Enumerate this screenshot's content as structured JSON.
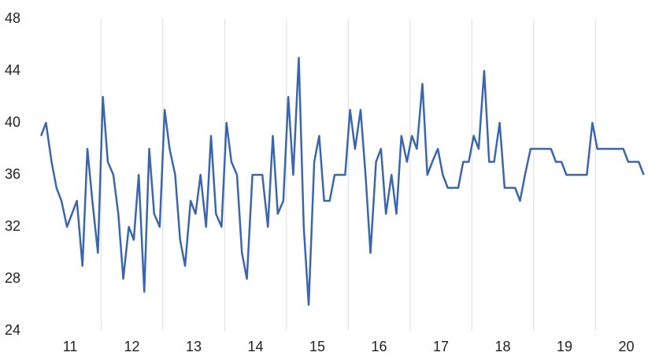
{
  "chart_data": {
    "type": "line",
    "x": [
      10.53,
      10.61,
      10.7,
      10.78,
      10.86,
      10.95,
      11.03,
      11.11,
      11.2,
      11.28,
      11.36,
      11.45,
      11.53,
      11.61,
      11.7,
      11.78,
      11.86,
      11.95,
      12.03,
      12.11,
      12.2,
      12.28,
      12.36,
      12.45,
      12.53,
      12.61,
      12.7,
      12.78,
      12.86,
      12.95,
      13.03,
      13.11,
      13.2,
      13.28,
      13.36,
      13.45,
      13.53,
      13.61,
      13.7,
      13.78,
      13.86,
      13.95,
      14.03,
      14.11,
      14.2,
      14.28,
      14.36,
      14.45,
      14.53,
      14.61,
      14.7,
      14.78,
      14.86,
      14.95,
      15.03,
      15.11,
      15.2,
      15.28,
      15.36,
      15.45,
      15.53,
      15.61,
      15.7,
      15.78,
      15.86,
      15.95,
      16.03,
      16.11,
      16.2,
      16.28,
      16.36,
      16.45,
      16.53,
      16.61,
      16.7,
      16.78,
      16.86,
      16.95,
      17.03,
      17.11,
      17.2,
      17.28,
      17.36,
      17.45,
      17.53,
      17.61,
      17.7,
      17.78,
      17.86,
      17.95,
      18.03,
      18.11,
      18.2,
      18.28,
      18.36,
      18.45,
      18.53,
      18.61,
      18.7,
      18.78,
      18.86,
      18.95,
      19.03,
      19.11,
      19.2,
      19.28,
      19.36,
      19.45,
      19.53,
      19.61,
      19.7,
      19.78,
      19.86,
      19.95,
      20.03,
      20.11,
      20.2,
      20.28
    ],
    "series": [
      {
        "color": "#3b66ad",
        "values": [
          39,
          40,
          37,
          35,
          34,
          32,
          33,
          34,
          29,
          38,
          34,
          30,
          42,
          37,
          36,
          33,
          28,
          32,
          31,
          36,
          27,
          38,
          33,
          32,
          41,
          38,
          36,
          31,
          29,
          34,
          33,
          36,
          32,
          39,
          33,
          32,
          40,
          37,
          36,
          30,
          28,
          36,
          36,
          36,
          32,
          39,
          33,
          34,
          42,
          36,
          45,
          32,
          26,
          37,
          39,
          34,
          34,
          36,
          36,
          36,
          41,
          38,
          41,
          36,
          30,
          37,
          38,
          33,
          36,
          33,
          39,
          37,
          39,
          38,
          43,
          36,
          37,
          38,
          36,
          35,
          35,
          35,
          37,
          37,
          39,
          38,
          44,
          37,
          37,
          40,
          35,
          35,
          35,
          34,
          36,
          38,
          38,
          38,
          38,
          38,
          37,
          37,
          36,
          36,
          36,
          36,
          36,
          40,
          38,
          38,
          38,
          38,
          38,
          38,
          37,
          37,
          37,
          36
        ]
      }
    ],
    "xlim": [
      10.49,
      20.35
    ],
    "xticks": [
      11,
      12,
      13,
      14,
      15,
      16,
      17,
      18,
      19,
      20
    ],
    "ylim": [
      24,
      48
    ],
    "yticks": [
      24,
      28,
      32,
      36,
      40,
      44,
      48
    ],
    "grid": true
  }
}
